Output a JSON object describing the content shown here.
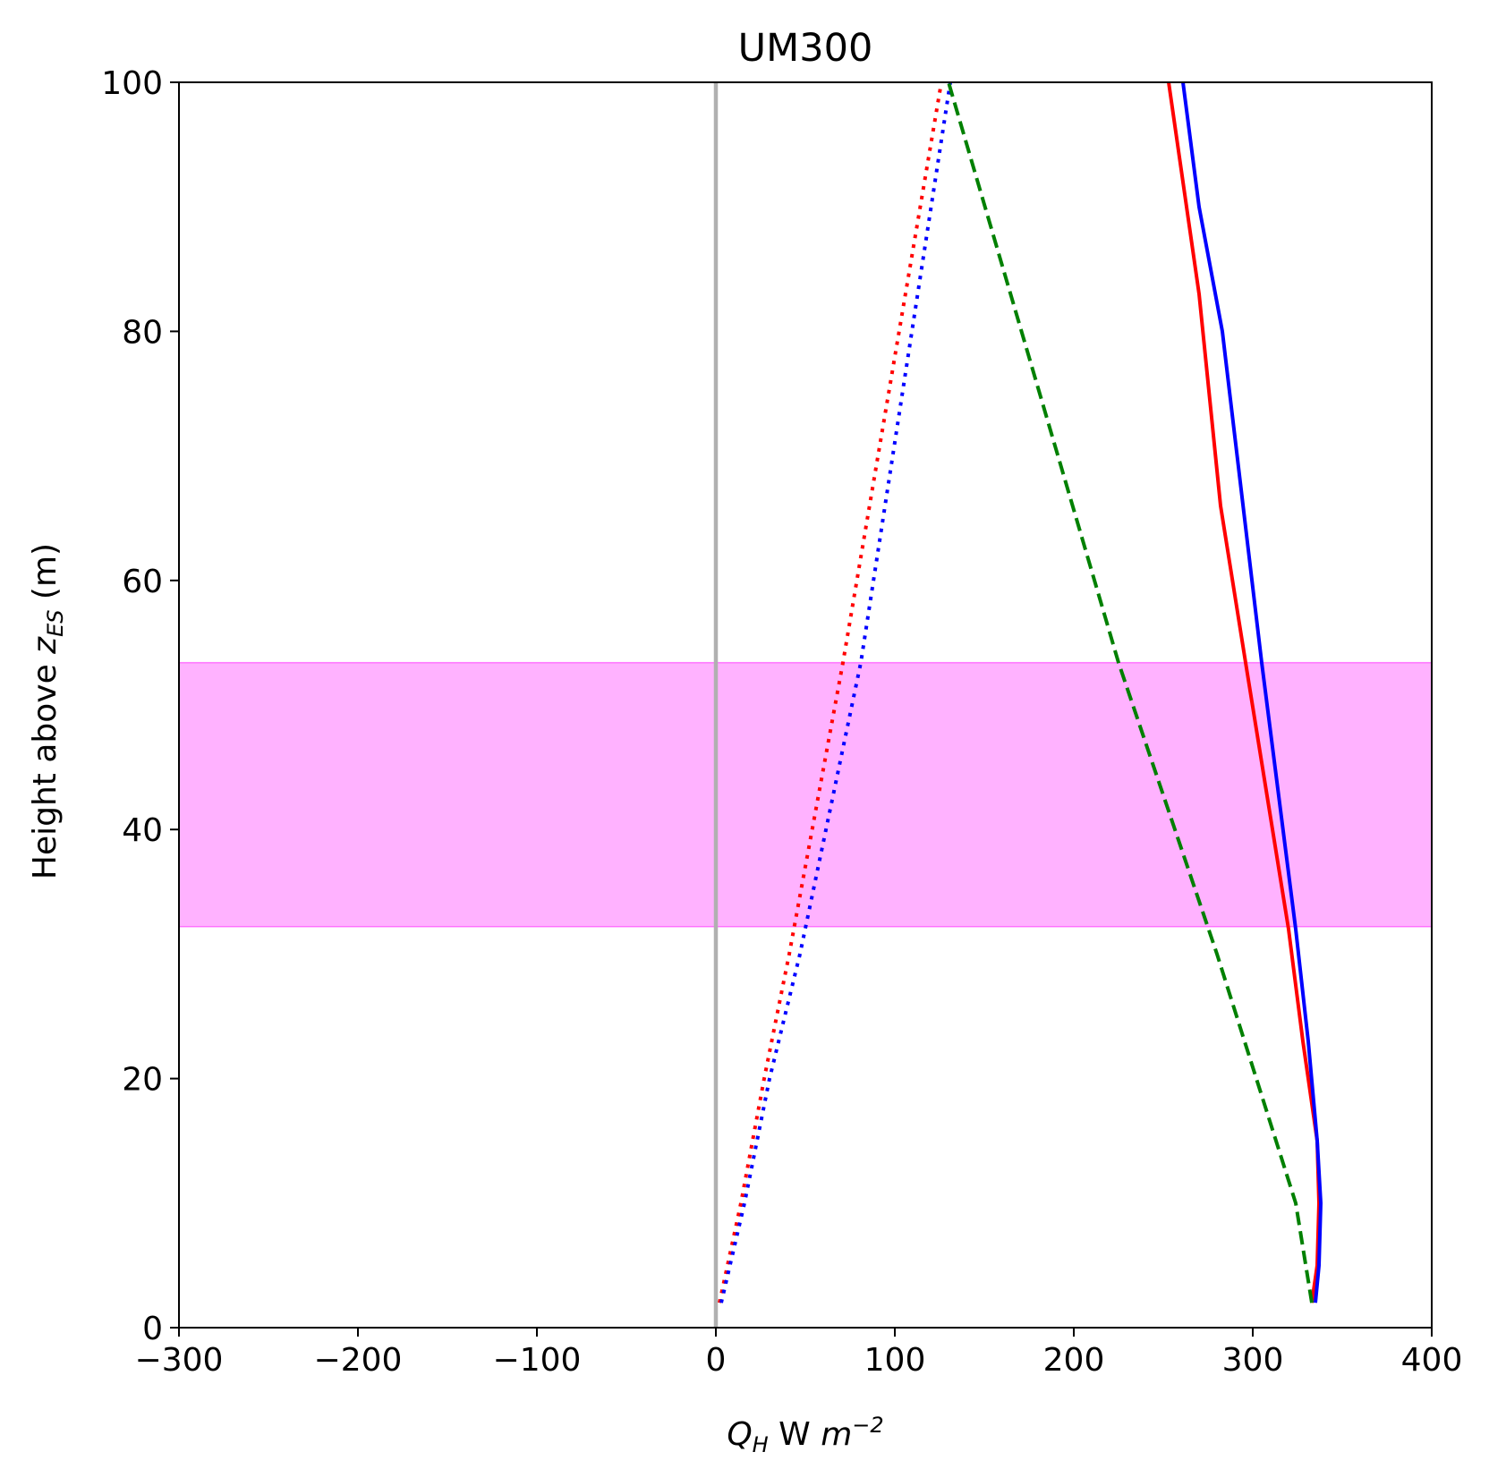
{
  "chart_data": {
    "type": "line",
    "title": "UM300",
    "xlabel": {
      "main": "Q",
      "sub": "H",
      "unit": " W ",
      "unit_var": "m",
      "exp": "−2"
    },
    "ylabel": {
      "prefix": "Height above ",
      "var": "z",
      "sub": "ES",
      "suffix": " (m)"
    },
    "xlim": [
      -300,
      400
    ],
    "ylim": [
      0,
      100
    ],
    "xticks": [
      -300,
      -200,
      -100,
      0,
      100,
      200,
      300,
      400
    ],
    "xtick_labels": [
      "−300",
      "−200",
      "−100",
      "0",
      "100",
      "200",
      "300",
      "400"
    ],
    "yticks": [
      0,
      20,
      40,
      60,
      80,
      100
    ],
    "ytick_labels": [
      "0",
      "20",
      "40",
      "60",
      "80",
      "100"
    ],
    "grid": false,
    "vline": {
      "x": 0,
      "color": "#b0b0b0"
    },
    "band": {
      "y0": 32.2,
      "y1": 53.4,
      "color": "#ff00ff",
      "opacity": 0.3
    },
    "series": [
      {
        "color": "#ff0000",
        "style": "solid",
        "x": [
          333,
          336,
          337,
          336,
          328,
          320,
          296,
          282,
          270,
          253
        ],
        "y": [
          2,
          5,
          10,
          15,
          23,
          32,
          53.4,
          66,
          83,
          100
        ]
      },
      {
        "color": "#0000ff",
        "style": "solid",
        "x": [
          335,
          337,
          338,
          336,
          331,
          324,
          305,
          283,
          270,
          261
        ],
        "y": [
          2,
          5,
          10,
          15,
          23,
          32,
          53.4,
          80,
          90,
          100
        ]
      },
      {
        "color": "#ff0000",
        "style": "dotted",
        "x": [
          2,
          14,
          27,
          41,
          71,
          126
        ],
        "y": [
          2,
          10,
          20,
          30,
          53.4,
          100
        ]
      },
      {
        "color": "#0000ff",
        "style": "dotted",
        "x": [
          3,
          16,
          30,
          47,
          81,
          131
        ],
        "y": [
          2,
          10,
          20,
          30,
          53.4,
          100
        ]
      },
      {
        "color": "#008000",
        "style": "dashed",
        "x": [
          333,
          324,
          302,
          280,
          225,
          130
        ],
        "y": [
          2,
          10,
          20,
          30,
          53.4,
          100
        ]
      }
    ]
  }
}
